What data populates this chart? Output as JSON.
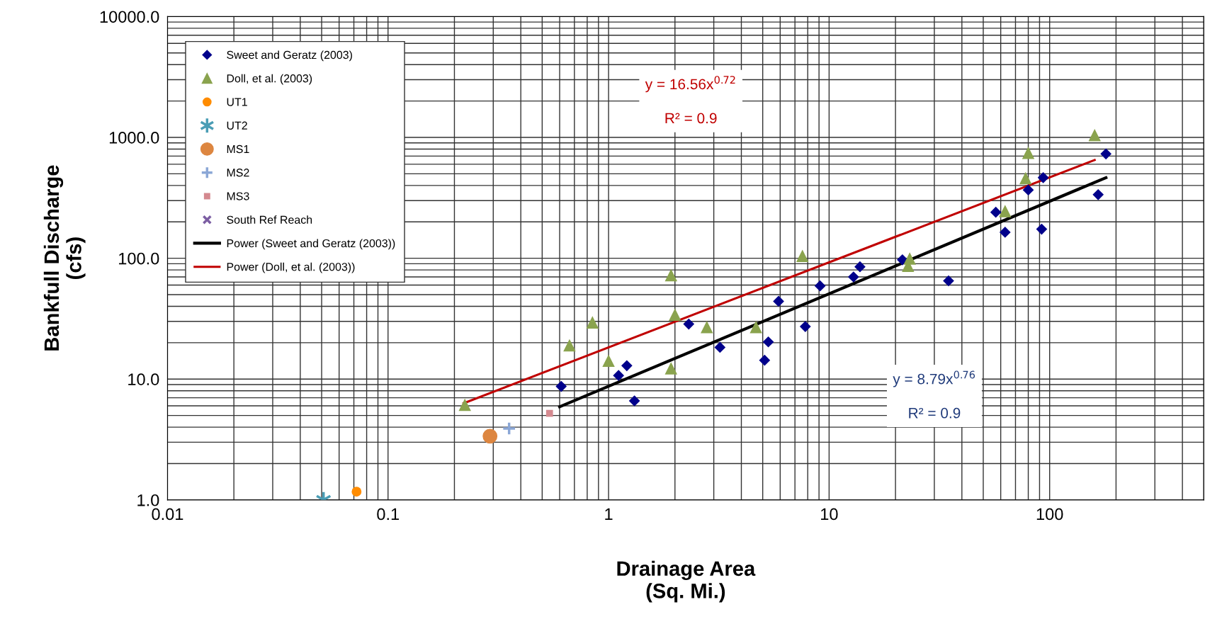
{
  "chart_data": {
    "type": "scatter",
    "xlabel": "Drainage Area\n(Sq. Mi.)",
    "ylabel": "Bankfull Discharge\n(cfs)",
    "log": "xy",
    "grid": true,
    "legend": "top left",
    "xlim": [
      0.01,
      500
    ],
    "ylim": [
      1,
      10000
    ],
    "xticks": [
      {
        "value": 0.01,
        "label": "0.01"
      },
      {
        "value": 0.1,
        "label": "0.1"
      },
      {
        "value": 1,
        "label": "1"
      },
      {
        "value": 10,
        "label": "10"
      },
      {
        "value": 100,
        "label": "100"
      }
    ],
    "yticks": [
      {
        "value": 1,
        "label": "1.0"
      },
      {
        "value": 10,
        "label": "10.0"
      },
      {
        "value": 100,
        "label": "100.0"
      },
      {
        "value": 1000,
        "label": "1000.0"
      },
      {
        "value": 10000,
        "label": "10000.0"
      }
    ],
    "series": [
      {
        "name": "Sweet and Geratz (2003)",
        "marker": "diamond",
        "color": "#00008b",
        "x": [
          0.61,
          1.11,
          1.21,
          1.31,
          2.31,
          3.2,
          5.1,
          5.3,
          5.9,
          7.8,
          9.1,
          12.9,
          13.8,
          21.5,
          34.8,
          57,
          62.8,
          80,
          92,
          93.5,
          166,
          180
        ],
        "values": [
          8.7,
          10.7,
          12.9,
          6.6,
          28.5,
          18.3,
          14.3,
          20.3,
          44,
          27.2,
          59,
          70,
          85,
          97,
          65,
          240,
          164,
          367,
          174,
          464,
          336,
          730
        ]
      },
      {
        "name": "Doll, et al. (2003)",
        "marker": "triangle",
        "color": "#8aa34e",
        "x": [
          0.223,
          0.665,
          0.845,
          1.0,
          1.92,
          1.92,
          2.0,
          2.79,
          4.66,
          7.57,
          22.8,
          23.2,
          62.8,
          77.8,
          80,
          160
        ],
        "values": [
          6.1,
          18.9,
          29.3,
          14.1,
          12.2,
          72,
          33.9,
          26.8,
          26.8,
          104,
          86,
          99,
          244,
          457,
          741,
          1038
        ]
      },
      {
        "name": "UT1",
        "marker": "circle",
        "color": "#ff8c00",
        "x": [
          0.072
        ],
        "values": [
          1.17
        ]
      },
      {
        "name": "UT2",
        "marker": "cross",
        "color": "#4a9db5",
        "x": [
          0.051
        ],
        "values": [
          1.0
        ]
      },
      {
        "name": "MS1",
        "marker": "circle",
        "color": "#dd8640",
        "x": [
          0.29
        ],
        "values": [
          3.37
        ]
      },
      {
        "name": "MS2",
        "marker": "cross",
        "color": "#8ba7d6",
        "x": [
          0.354
        ],
        "values": [
          3.9
        ]
      },
      {
        "name": "MS3",
        "marker": "square",
        "color": "#d4898f",
        "x": [
          0.54
        ],
        "values": [
          5.2
        ]
      },
      {
        "name": "South Ref Reach",
        "marker": "cross",
        "color": "#7c5ea3"
      },
      {
        "name": "Power (Sweet and Geratz (2003))",
        "type": "line",
        "marker": "none",
        "color": "#000000",
        "x": [
          0.6,
          180
        ],
        "values": [
          5.9,
          464
        ]
      },
      {
        "name": "Power (Doll, et al. (2003))",
        "type": "line",
        "marker": "none",
        "color": "#c00000",
        "x": [
          0.22,
          160
        ],
        "values": [
          6.3,
          650
        ]
      }
    ],
    "annotations": [
      "y = 16.56x$^{0.72}$\n\nR² = 0.9",
      "y = 8.79x$^{0.76}$\n\nR² = 0.9"
    ]
  }
}
